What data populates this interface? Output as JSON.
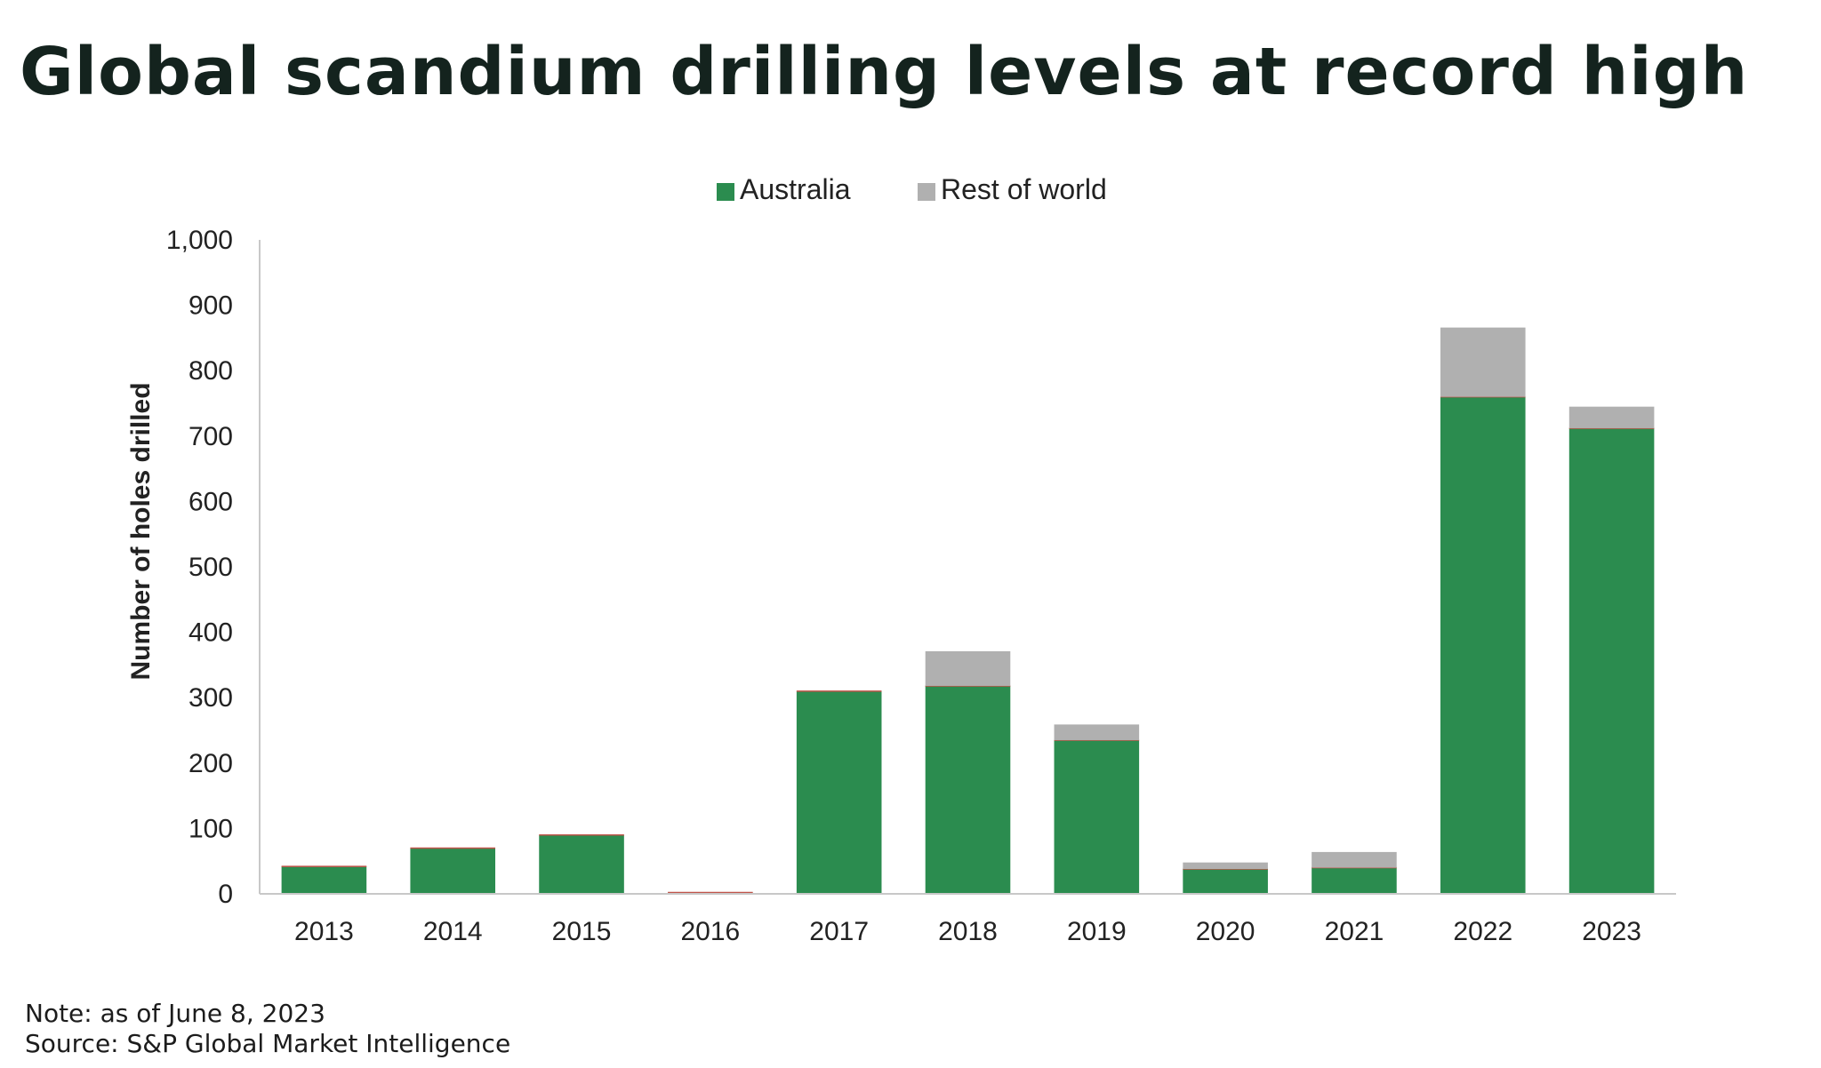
{
  "title": "Global scandium drilling levels at record high",
  "note": "Note: as of June 8, 2023",
  "source": "Source: S&P Global Market Intelligence",
  "colors": {
    "australia": "#2b8c4f",
    "rest_of_world": "#b0b0b0",
    "bar_outline": "#c0544a",
    "axis": "#c8c8c8",
    "title": "#14231e"
  },
  "chart_data": {
    "type": "bar",
    "stacked": true,
    "categories": [
      "2013",
      "2014",
      "2015",
      "2016",
      "2017",
      "2018",
      "2019",
      "2020",
      "2021",
      "2022",
      "2023"
    ],
    "series": [
      {
        "name": "Australia",
        "values": [
          42,
          70,
          90,
          2,
          310,
          318,
          235,
          38,
          40,
          760,
          712
        ]
      },
      {
        "name": "Rest of world",
        "values": [
          0,
          0,
          0,
          0,
          0,
          53,
          24,
          10,
          24,
          106,
          33
        ]
      }
    ],
    "xlabel": "",
    "ylabel": "Number of holes drilled",
    "ylim": [
      0,
      1000
    ],
    "yticks": [
      0,
      100,
      200,
      300,
      400,
      500,
      600,
      700,
      800,
      900,
      1000
    ],
    "ytick_labels": [
      "0",
      "100",
      "200",
      "300",
      "400",
      "500",
      "600",
      "700",
      "800",
      "900",
      "1,000"
    ],
    "grid": false,
    "legend": "top-center"
  }
}
